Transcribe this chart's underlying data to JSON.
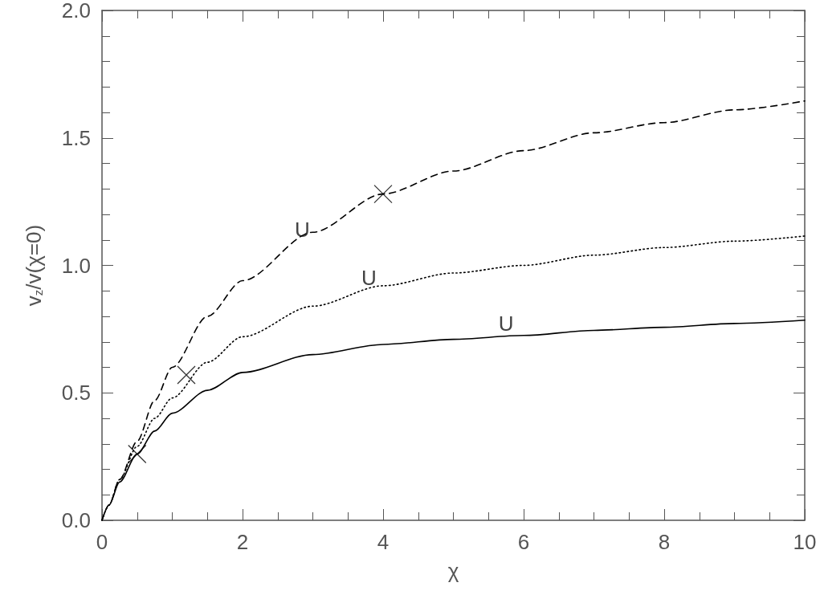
{
  "chart_data": {
    "type": "line",
    "xlabel": "χ",
    "ylabel": "v$_{z}$/v(χ=0)",
    "x": [
      0,
      0.1,
      0.25,
      0.5,
      0.75,
      1,
      1.5,
      2,
      3,
      4,
      5,
      6,
      7,
      8,
      9,
      10
    ],
    "series": [
      {
        "color": "#000000",
        "line_style": "solid",
        "values": [
          0,
          0.06,
          0.15,
          0.26,
          0.35,
          0.42,
          0.51,
          0.58,
          0.65,
          0.69,
          0.71,
          0.725,
          0.745,
          0.757,
          0.772,
          0.785
        ]
      },
      {
        "color": "#000000",
        "line_style": "dotted",
        "values": [
          0,
          0.06,
          0.16,
          0.29,
          0.4,
          0.48,
          0.62,
          0.72,
          0.84,
          0.92,
          0.97,
          1.0,
          1.04,
          1.07,
          1.095,
          1.115
        ]
      },
      {
        "color": "#000000",
        "line_style": "dashed",
        "values": [
          0,
          0.06,
          0.16,
          0.31,
          0.47,
          0.6,
          0.8,
          0.94,
          1.13,
          1.28,
          1.37,
          1.45,
          1.52,
          1.56,
          1.61,
          1.645
        ]
      },
      {
        "type": "scatter",
        "marker": "cross",
        "color": "#000000",
        "x": [
          0.5,
          1.2,
          4.0
        ],
        "values": [
          0.26,
          0.57,
          1.28
        ]
      }
    ],
    "annotations": [
      {
        "text": "U",
        "x": 5.75,
        "y": 0.73
      },
      {
        "text": "U",
        "x": 3.8,
        "y": 0.91
      },
      {
        "text": "U",
        "x": 2.85,
        "y": 1.1
      }
    ],
    "xlim": [
      0,
      10
    ],
    "xticks": [
      0,
      2,
      4,
      6,
      8,
      10
    ],
    "ylim": [
      0,
      2
    ],
    "yticks": [
      {
        "value": 0,
        "label": "0.0"
      },
      {
        "value": 0.5,
        "label": "0.5"
      },
      {
        "value": 1,
        "label": "1.0"
      },
      {
        "value": 1.5,
        "label": "1.5"
      },
      {
        "value": 2,
        "label": "2.0"
      }
    ],
    "grid": false,
    "marker": "none"
  }
}
